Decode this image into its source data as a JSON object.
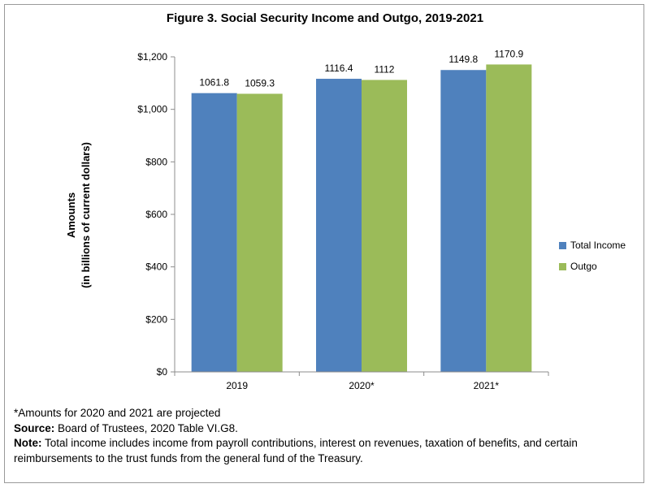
{
  "chart_data": {
    "type": "bar",
    "title": "Figure 3. Social Security Income and Outgo, 2019-2021",
    "categories": [
      "2019",
      "2020*",
      "2021*"
    ],
    "series": [
      {
        "name": "Total Income",
        "values": [
          1061.8,
          1116.4,
          1149.8
        ],
        "labels": [
          "1061.8",
          "1116.4",
          "1149.8"
        ],
        "color": "#4f81bd"
      },
      {
        "name": "Outgo",
        "values": [
          1059.3,
          1112,
          1170.9
        ],
        "labels": [
          "1059.3",
          "1112",
          "1170.9"
        ],
        "color": "#9bbb59"
      }
    ],
    "ylabel_line1": "Amounts",
    "ylabel_line2": "(in billions of current dollars)",
    "xlabel": "",
    "ylim": [
      0,
      1200
    ],
    "yticks": [
      0,
      200,
      400,
      600,
      800,
      1000,
      1200
    ],
    "ytick_labels": [
      "$0",
      "$200",
      "$400",
      "$600",
      "$800",
      "$1,000",
      "$1,200"
    ],
    "grid": false,
    "legend_position": "right"
  },
  "notes": {
    "projected": "*Amounts for 2020 and 2021 are projected",
    "source_label": "Source:",
    "source_text": " Board of Trustees, 2020 Table VI.G8.",
    "note_label": "Note:",
    "note_text": " Total income includes income from payroll contributions, interest on revenues, taxation of benefits, and certain reimbursements to the trust funds from the general fund of the Treasury."
  }
}
